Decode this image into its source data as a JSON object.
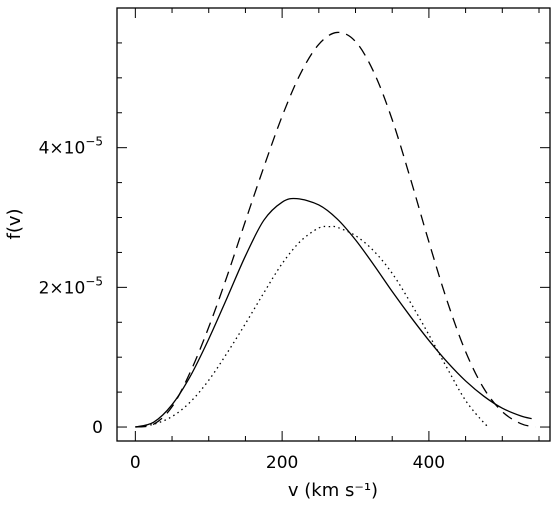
{
  "chart_data": {
    "type": "line",
    "xlabel": "v (km s⁻¹)",
    "ylabel": "f(v)",
    "xlim": [
      -25,
      565
    ],
    "ylim": [
      -2e-06,
      6e-05
    ],
    "x_ticks": [
      {
        "value": 0,
        "label": "0"
      },
      {
        "value": 200,
        "label": "200"
      },
      {
        "value": 400,
        "label": "400"
      }
    ],
    "y_ticks": [
      {
        "value": 0,
        "mantissa": "0",
        "exponent": ""
      },
      {
        "value": 2e-05,
        "mantissa": "2×10",
        "exponent": "−5"
      },
      {
        "value": 4e-05,
        "mantissa": "4×10",
        "exponent": "−5"
      }
    ],
    "x_minor_step": 50,
    "y_minor_step": 5e-06,
    "grid": false,
    "series": [
      {
        "style": "dashed",
        "x": [
          0,
          25,
          50,
          75,
          100,
          125,
          150,
          175,
          200,
          225,
          250,
          275,
          300,
          325,
          350,
          375,
          400,
          425,
          450,
          475,
          500,
          525,
          545
        ],
        "y": [
          0,
          4e-07,
          2.9e-06,
          7.9e-06,
          1.43e-05,
          2.16e-05,
          2.95e-05,
          3.72e-05,
          4.45e-05,
          5.06e-05,
          5.48e-05,
          5.65e-05,
          5.52e-05,
          5.08e-05,
          4.4e-05,
          3.55e-05,
          2.65e-05,
          1.8e-05,
          1.08e-05,
          5.5e-06,
          2.2e-06,
          5e-07,
          0
        ]
      },
      {
        "style": "solid",
        "x": [
          0,
          25,
          50,
          75,
          100,
          125,
          150,
          175,
          200,
          220,
          250,
          275,
          300,
          325,
          350,
          375,
          400,
          425,
          450,
          475,
          500,
          525,
          540
        ],
        "y": [
          0,
          7e-07,
          3.2e-06,
          7.3e-06,
          1.26e-05,
          1.85e-05,
          2.45e-05,
          2.96e-05,
          3.22e-05,
          3.27e-05,
          3.18e-05,
          2.98e-05,
          2.68e-05,
          2.32e-05,
          1.94e-05,
          1.58e-05,
          1.24e-05,
          9.3e-06,
          6.6e-06,
          4.4e-06,
          2.7e-06,
          1.6e-06,
          1.2e-06
        ]
      },
      {
        "style": "dotted",
        "x": [
          0,
          25,
          50,
          75,
          100,
          125,
          150,
          175,
          200,
          225,
          250,
          265,
          275,
          300,
          325,
          350,
          375,
          400,
          425,
          450,
          475,
          483
        ],
        "y": [
          0,
          4e-07,
          1.5e-06,
          3.6e-06,
          6.7e-06,
          1.06e-05,
          1.48e-05,
          1.92e-05,
          2.34e-05,
          2.66e-05,
          2.85e-05,
          2.87e-05,
          2.86e-05,
          2.74e-05,
          2.52e-05,
          2.2e-05,
          1.78e-05,
          1.32e-05,
          8.4e-06,
          3.8e-06,
          6e-07,
          0
        ]
      }
    ]
  }
}
